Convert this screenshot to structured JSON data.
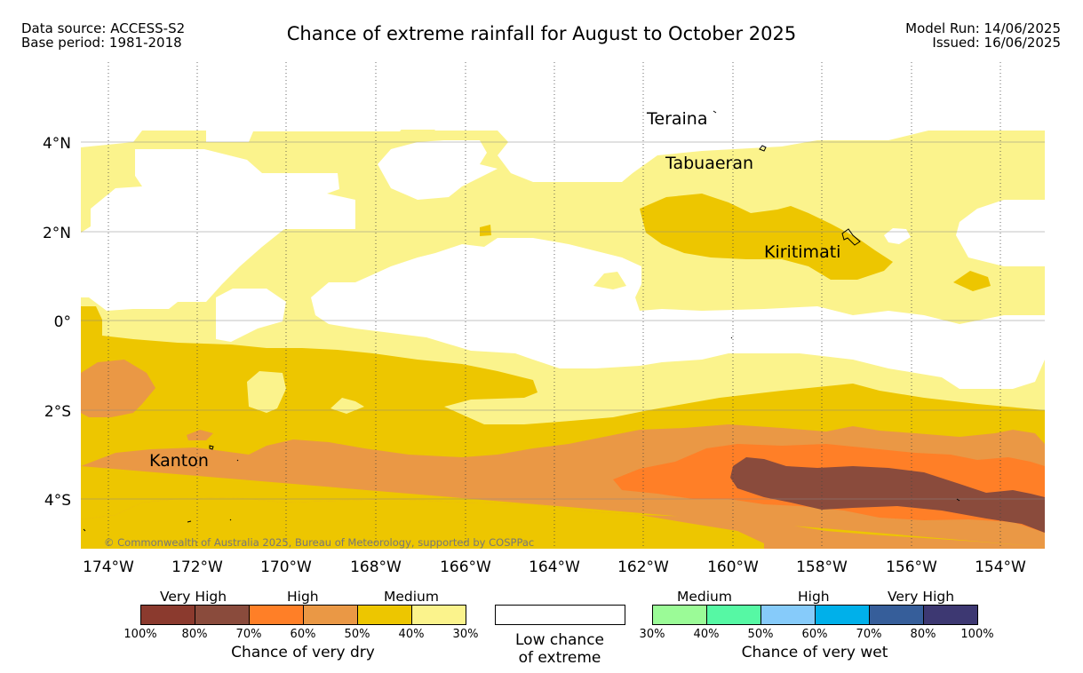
{
  "header": {
    "data_source": "Data source: ACCESS-S2",
    "base_period": "Base period: 1981-2018",
    "title": "Chance of extreme rainfall for August to October 2025",
    "model_run": "Model Run: 14/06/2025",
    "issued": "Issued: 16/06/2025"
  },
  "map": {
    "lon_labels": [
      "174°W",
      "172°W",
      "170°W",
      "168°W",
      "166°W",
      "164°W",
      "162°W",
      "160°W",
      "158°W",
      "156°W",
      "154°W"
    ],
    "lat_labels": [
      "4°N",
      "2°N",
      "0°",
      "2°S",
      "4°S"
    ],
    "places": [
      "Teraina",
      "Tabuaeran",
      "Kiritimati",
      "Kanton"
    ],
    "copyright": "© Commonwealth of Australia 2025, Bureau of Meteorology, supported by COSPPac"
  },
  "legend": {
    "dry": {
      "groups": [
        "Very High",
        "High",
        "Medium"
      ],
      "ticks": [
        "100%",
        "80%",
        "70%",
        "60%",
        "50%",
        "40%",
        "30%"
      ],
      "colors": [
        "#8B3A2E",
        "#8A4B3C",
        "#FF7F27",
        "#EA9845",
        "#EDC600",
        "#FBF38C"
      ],
      "title": "Chance of very dry"
    },
    "neutral": {
      "line1": "Low chance",
      "line2": "of extreme"
    },
    "wet": {
      "groups": [
        "Medium",
        "High",
        "Very High"
      ],
      "ticks": [
        "30%",
        "40%",
        "50%",
        "60%",
        "70%",
        "80%",
        "100%"
      ],
      "colors": [
        "#9BFB97",
        "#56F8A4",
        "#86CBFA",
        "#00B0EA",
        "#365E9A",
        "#3D3872"
      ],
      "title": "Chance of very wet"
    }
  }
}
